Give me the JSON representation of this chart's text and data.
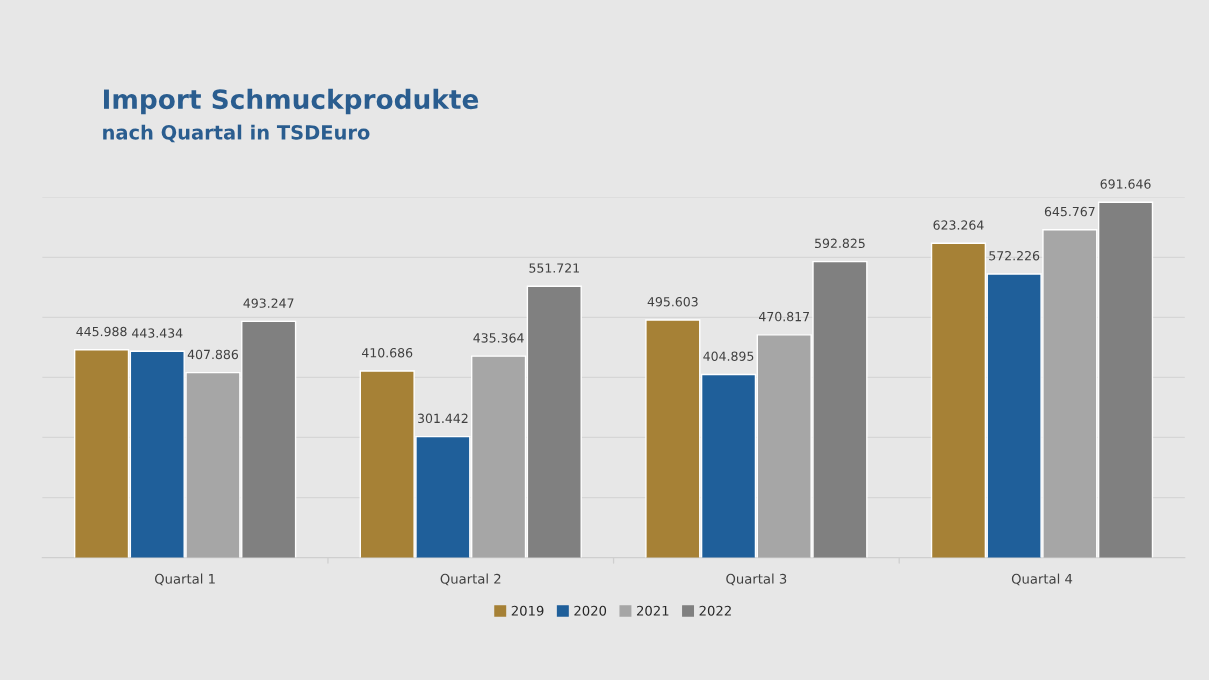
{
  "chart_data": {
    "type": "bar",
    "title": "Import Schmuckprodukte",
    "subtitle": "nach Quartal in TSDEuro",
    "categories": [
      "Quartal 1",
      "Quartal 2",
      "Quartal 3",
      "Quartal 4"
    ],
    "series": [
      {
        "name": "2019",
        "color": "#a68136",
        "values": [
          445988,
          410686,
          495603,
          623264
        ],
        "value_labels": [
          "445.988",
          "410.686",
          "495.603",
          "623.264"
        ]
      },
      {
        "name": "2020",
        "color": "#1f5f9a",
        "values": [
          443434,
          301442,
          404895,
          572226
        ],
        "value_labels": [
          "443.434",
          "301.442",
          "404.895",
          "572.226"
        ]
      },
      {
        "name": "2021",
        "color": "#a6a6a6",
        "values": [
          407886,
          435364,
          470817,
          645767
        ],
        "value_labels": [
          "407.886",
          "435.364",
          "470.817",
          "645.767"
        ]
      },
      {
        "name": "2022",
        "color": "#808080",
        "values": [
          493247,
          551721,
          592825,
          691646
        ],
        "value_labels": [
          "493.247",
          "551.721",
          "592.825",
          "691.646"
        ]
      }
    ],
    "ylim": [
      100000,
      700000
    ],
    "yticks": [
      {
        "value": 100000,
        "label": null
      },
      {
        "value": 200000,
        "label": null
      },
      {
        "value": 300000,
        "label": null
      },
      {
        "value": 400000,
        "label": null
      },
      {
        "value": 500000,
        "label": null
      },
      {
        "value": 600000,
        "label": null
      },
      {
        "value": 700000,
        "label": null
      }
    ],
    "tick_labels": "x",
    "grid": "y",
    "legend": "bottom"
  }
}
